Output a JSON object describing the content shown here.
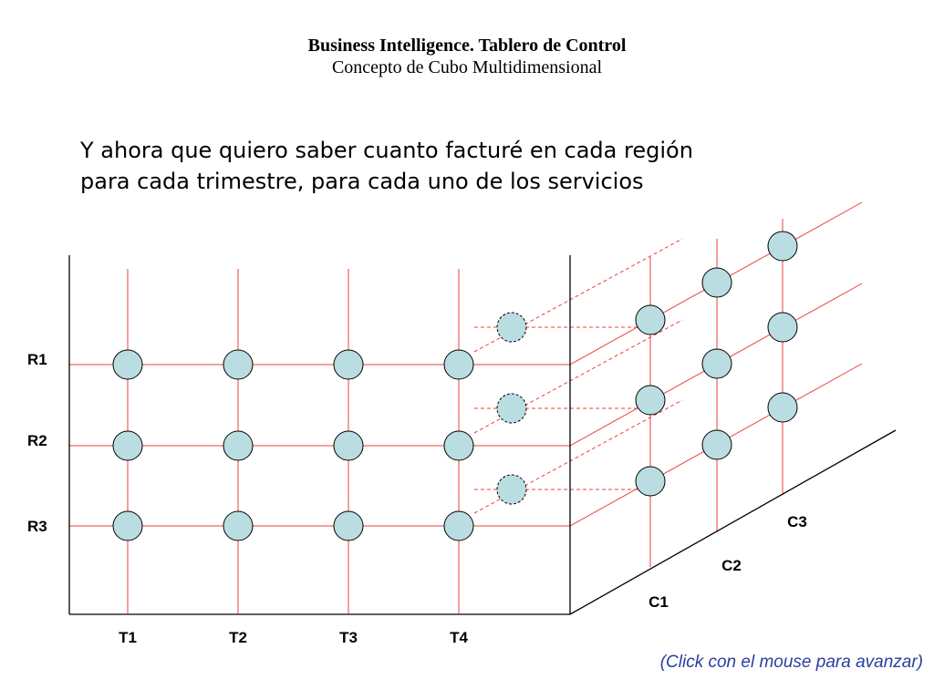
{
  "header": {
    "title": "Business Intelligence. Tablero de Control",
    "subtitle": "Concepto de Cubo Multidimensional"
  },
  "question": {
    "line1": "Y ahora que quiero saber cuanto facturé en cada región",
    "line2": "para cada trimestre, para cada uno de los servicios"
  },
  "diagram": {
    "regions": [
      "R1",
      "R2",
      "R3"
    ],
    "quarters": [
      "T1",
      "T2",
      "T3",
      "T4"
    ],
    "services": [
      "C1",
      "C2",
      "C3"
    ],
    "colors": {
      "grid_line": "#e8413c",
      "node_fill": "#b9dde0",
      "node_stroke": "#000000",
      "axis": "#000000"
    }
  },
  "footer": {
    "hint": "(Click con el mouse para avanzar)"
  }
}
